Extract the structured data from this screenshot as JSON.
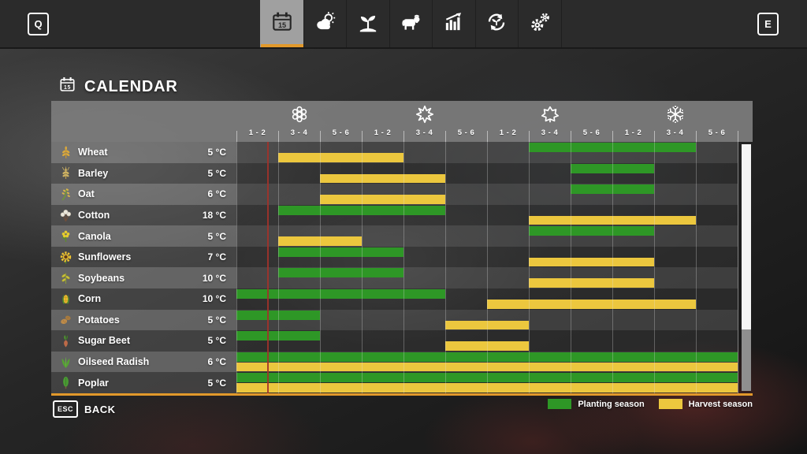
{
  "top_bar": {
    "left_key": "Q",
    "right_key": "E",
    "tabs": [
      {
        "id": "calendar",
        "icon": "calendar-icon",
        "active": true
      },
      {
        "id": "weather",
        "icon": "weather-icon",
        "active": false
      },
      {
        "id": "crops",
        "icon": "seedling-icon",
        "active": false
      },
      {
        "id": "animals",
        "icon": "cow-icon",
        "active": false
      },
      {
        "id": "statistics",
        "icon": "chart-icon",
        "active": false
      },
      {
        "id": "economy",
        "icon": "cycle-icon",
        "active": false
      },
      {
        "id": "settings",
        "icon": "gears-icon",
        "active": false
      }
    ]
  },
  "page": {
    "title": "CALENDAR"
  },
  "calendar": {
    "seasons": [
      {
        "name": "spring",
        "icon": "flower-icon",
        "column": 2
      },
      {
        "name": "summer",
        "icon": "sun-icon",
        "column": 5
      },
      {
        "name": "autumn",
        "icon": "leaf-icon",
        "column": 8
      },
      {
        "name": "winter",
        "icon": "snowflake-icon",
        "column": 11
      }
    ],
    "period_labels": [
      "1 - 2",
      "3 - 4",
      "5 - 6",
      "1 - 2",
      "3 - 4",
      "5 - 6",
      "1 - 2",
      "3 - 4",
      "5 - 6",
      "1 - 2",
      "3 - 4",
      "5 - 6"
    ],
    "crops": [
      {
        "name": "Wheat",
        "temp": "5 °C",
        "icon": "wheat-icon",
        "planting": [
          8,
          11
        ],
        "harvest": [
          2,
          4
        ]
      },
      {
        "name": "Barley",
        "temp": "5 °C",
        "icon": "barley-icon",
        "planting": [
          9,
          10
        ],
        "harvest": [
          3,
          5
        ]
      },
      {
        "name": "Oat",
        "temp": "6 °C",
        "icon": "oat-icon",
        "planting": [
          9,
          10
        ],
        "harvest": [
          3,
          5
        ]
      },
      {
        "name": "Cotton",
        "temp": "18 °C",
        "icon": "cotton-icon",
        "planting": [
          2,
          5
        ],
        "harvest": [
          8,
          11
        ]
      },
      {
        "name": "Canola",
        "temp": "5 °C",
        "icon": "canola-icon",
        "planting": [
          8,
          10
        ],
        "harvest": [
          2,
          3
        ]
      },
      {
        "name": "Sunflowers",
        "temp": "7 °C",
        "icon": "sunflower-icon",
        "planting": [
          2,
          4
        ],
        "harvest": [
          8,
          10
        ]
      },
      {
        "name": "Soybeans",
        "temp": "10 °C",
        "icon": "soybeans-icon",
        "planting": [
          2,
          4
        ],
        "harvest": [
          8,
          10
        ]
      },
      {
        "name": "Corn",
        "temp": "10 °C",
        "icon": "corn-icon",
        "planting": [
          1,
          5
        ],
        "harvest": [
          7,
          11
        ]
      },
      {
        "name": "Potatoes",
        "temp": "5 °C",
        "icon": "potatoes-icon",
        "planting": [
          1,
          2
        ],
        "harvest": [
          6,
          7
        ]
      },
      {
        "name": "Sugar Beet",
        "temp": "5 °C",
        "icon": "sugar-beet-icon",
        "planting": [
          1,
          2
        ],
        "harvest": [
          6,
          7
        ]
      },
      {
        "name": "Oilseed Radish",
        "temp": "6 °C",
        "icon": "oilseed-radish-icon",
        "planting": [
          1,
          12
        ],
        "harvest": [
          1,
          12
        ]
      },
      {
        "name": "Poplar",
        "temp": "5 °C",
        "icon": "poplar-icon",
        "planting": [
          1,
          12
        ],
        "harvest": [
          1,
          12
        ]
      }
    ],
    "day_marker": {
      "column": 1,
      "fraction": 0.735
    },
    "scrollbar": {
      "thumb_top_pct": 0,
      "thumb_height_pct": 75
    }
  },
  "legend": {
    "planting_label": "Planting season",
    "harvest_label": "Harvest season"
  },
  "footer": {
    "back_key": "ESC",
    "back_label": "BACK"
  },
  "colors": {
    "planting_green": "#2e9726",
    "harvest_yellow": "#ecc73e",
    "accent_orange": "#e2992b",
    "day_marker_red": "#a2322a"
  }
}
